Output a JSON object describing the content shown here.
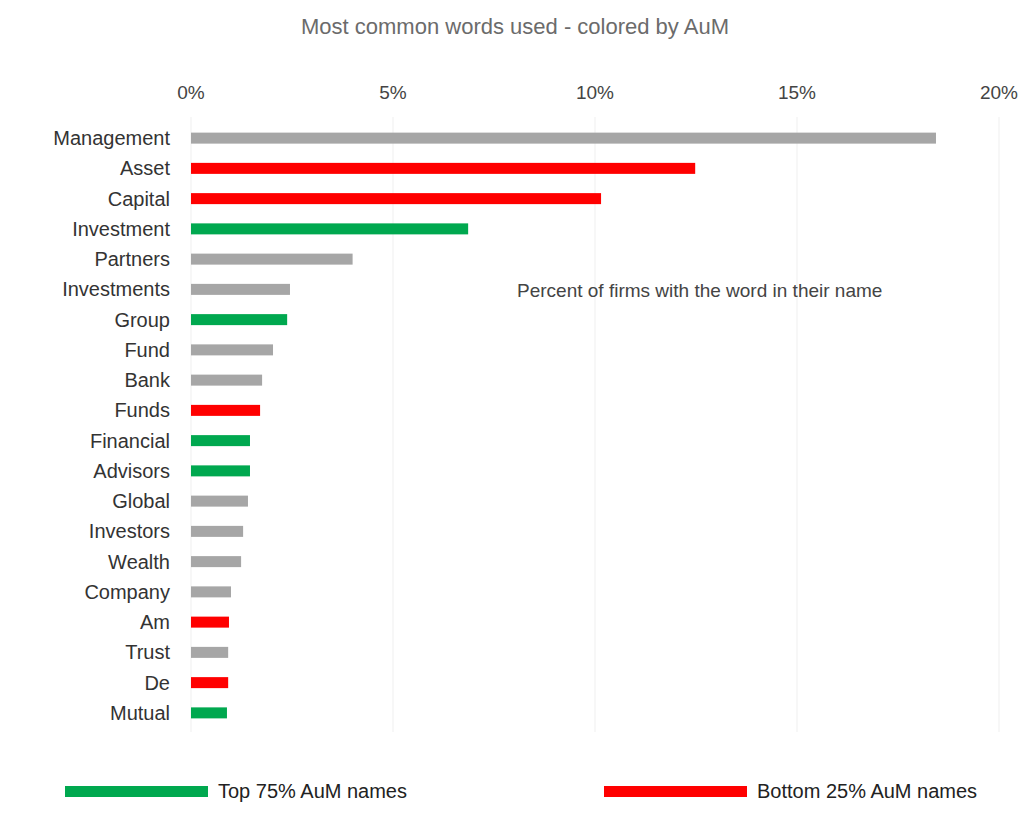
{
  "chart_data": {
    "type": "bar",
    "title": "Most common words used - colored by AuM",
    "orientation": "horizontal",
    "annotation": "Percent of firms with the word in their name",
    "categories": [
      "Management",
      "Asset",
      "Capital",
      "Investment",
      "Partners",
      "Investments",
      "Group",
      "Fund",
      "Bank",
      "Funds",
      "Financial",
      "Advisors",
      "Global",
      "Investors",
      "Wealth",
      "Company",
      "Am",
      "Trust",
      "De",
      "Mutual"
    ],
    "values": [
      18.44,
      12.48,
      10.15,
      6.86,
      4.0,
      2.45,
      2.38,
      2.03,
      1.76,
      1.71,
      1.46,
      1.46,
      1.41,
      1.29,
      1.24,
      0.99,
      0.94,
      0.92,
      0.92,
      0.89
    ],
    "colors": [
      "#a6a6a6",
      "#ff0000",
      "#ff0000",
      "#00a84f",
      "#a6a6a6",
      "#a6a6a6",
      "#00a84f",
      "#a6a6a6",
      "#a6a6a6",
      "#ff0000",
      "#00a84f",
      "#00a84f",
      "#a6a6a6",
      "#a6a6a6",
      "#a6a6a6",
      "#a6a6a6",
      "#ff0000",
      "#a6a6a6",
      "#ff0000",
      "#00a84f"
    ],
    "xlim": [
      0,
      20
    ],
    "xticks": [
      {
        "value": 0,
        "label": "0%"
      },
      {
        "value": 5,
        "label": "5%"
      },
      {
        "value": 10,
        "label": "10%"
      },
      {
        "value": 15,
        "label": "15%"
      },
      {
        "value": 20,
        "label": "20%"
      }
    ],
    "grid": true,
    "legend": "bottom",
    "legend_entries": [
      {
        "name": "Top 75% AuM names",
        "color": "#00a84f"
      },
      {
        "name": "Bottom 25% AuM names",
        "color": "#ff0000"
      }
    ]
  }
}
